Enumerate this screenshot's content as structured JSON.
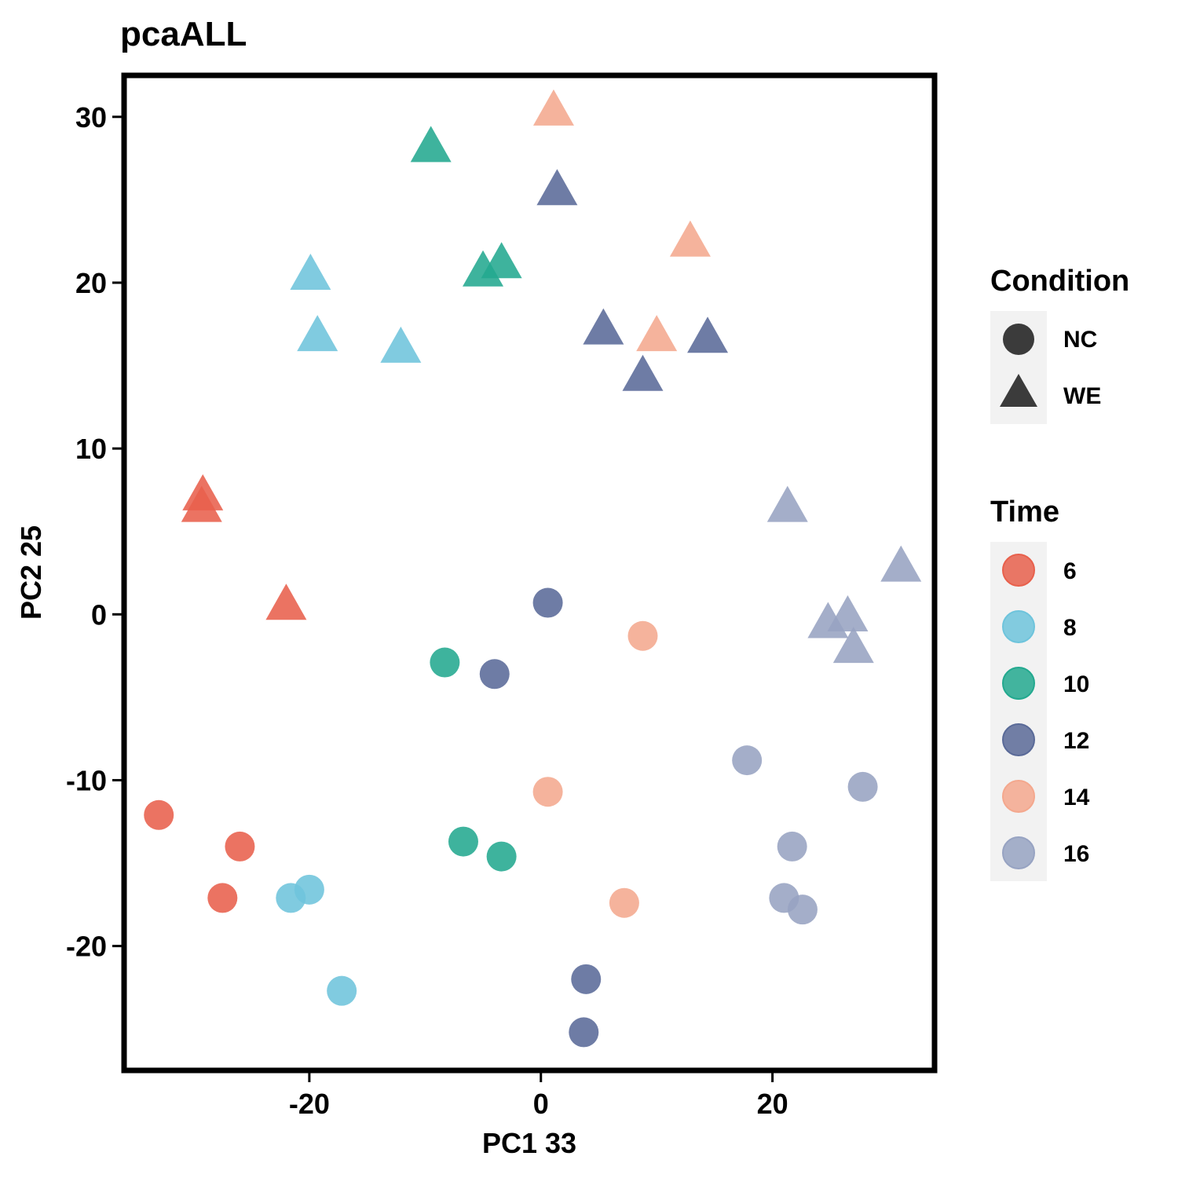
{
  "chart_data": {
    "type": "scatter",
    "title": "pcaALL",
    "xlabel": "PC1 33",
    "ylabel": "PC2 25",
    "xlim": [
      -36,
      34
    ],
    "ylim": [
      -27.5,
      32.5
    ],
    "x_ticks": [
      -20,
      0,
      20
    ],
    "y_ticks": [
      30,
      20,
      10,
      0,
      -10,
      -20
    ],
    "grid": false,
    "legends": [
      {
        "title": "Condition",
        "placement": "right",
        "entries": [
          {
            "label": "NC",
            "shape": "circle"
          },
          {
            "label": "WE",
            "shape": "triangle"
          }
        ]
      },
      {
        "title": "Time",
        "placement": "right",
        "entries": [
          {
            "label": "6",
            "color": "#e8604c"
          },
          {
            "label": "8",
            "color": "#6ec4dc"
          },
          {
            "label": "10",
            "color": "#23a98f"
          },
          {
            "label": "12",
            "color": "#5a6a98"
          },
          {
            "label": "14",
            "color": "#f4a88e"
          },
          {
            "label": "16",
            "color": "#97a3c2"
          }
        ]
      }
    ],
    "series": [
      {
        "time": "6",
        "condition": "NC",
        "color": "#e8604c",
        "points": [
          [
            -33,
            -12.1
          ],
          [
            -26,
            -14
          ],
          [
            -27.5,
            -17.1
          ]
        ]
      },
      {
        "time": "6",
        "condition": "WE",
        "color": "#e8604c",
        "points": [
          [
            -29.2,
            7.1
          ],
          [
            -29.3,
            6.4
          ],
          [
            -22,
            0.5
          ]
        ]
      },
      {
        "time": "8",
        "condition": "NC",
        "color": "#6ec4dc",
        "points": [
          [
            -21.6,
            -17.1
          ],
          [
            -20,
            -16.6
          ],
          [
            -17.2,
            -22.7
          ]
        ]
      },
      {
        "time": "8",
        "condition": "WE",
        "color": "#6ec4dc",
        "points": [
          [
            -19.9,
            20.4
          ],
          [
            -19.3,
            16.7
          ],
          [
            -12.1,
            16
          ]
        ]
      },
      {
        "time": "10",
        "condition": "NC",
        "color": "#23a98f",
        "points": [
          [
            -8.3,
            -2.9
          ],
          [
            -6.7,
            -13.7
          ],
          [
            -3.4,
            -14.6
          ]
        ]
      },
      {
        "time": "10",
        "condition": "WE",
        "color": "#23a98f",
        "points": [
          [
            -9.5,
            28.1
          ],
          [
            -5,
            20.6
          ],
          [
            -3.4,
            21.1
          ]
        ]
      },
      {
        "time": "12",
        "condition": "NC",
        "color": "#5a6a98",
        "points": [
          [
            0.6,
            0.7
          ],
          [
            -4,
            -3.6
          ],
          [
            3.9,
            -22
          ],
          [
            3.7,
            -25.2
          ]
        ]
      },
      {
        "time": "12",
        "condition": "WE",
        "color": "#5a6a98",
        "points": [
          [
            1.4,
            25.5
          ],
          [
            5.4,
            17.1
          ],
          [
            8.8,
            14.3
          ],
          [
            14.4,
            16.6
          ]
        ]
      },
      {
        "time": "14",
        "condition": "NC",
        "color": "#f4a88e",
        "points": [
          [
            8.8,
            -1.3
          ],
          [
            0.6,
            -10.7
          ],
          [
            7.2,
            -17.4
          ]
        ]
      },
      {
        "time": "14",
        "condition": "WE",
        "color": "#f4a88e",
        "points": [
          [
            1.1,
            30.3
          ],
          [
            12.9,
            22.4
          ],
          [
            10,
            16.7
          ]
        ]
      },
      {
        "time": "16",
        "condition": "NC",
        "color": "#97a3c2",
        "points": [
          [
            17.8,
            -8.8
          ],
          [
            27.8,
            -10.4
          ],
          [
            21.7,
            -14
          ],
          [
            21,
            -17.1
          ],
          [
            22.6,
            -17.8
          ]
        ]
      },
      {
        "time": "16",
        "condition": "WE",
        "color": "#97a3c2",
        "points": [
          [
            21.3,
            6.4
          ],
          [
            31.1,
            2.8
          ],
          [
            24.8,
            -0.6
          ],
          [
            26.5,
            -0.2
          ],
          [
            27,
            -2.1
          ]
        ]
      }
    ]
  }
}
